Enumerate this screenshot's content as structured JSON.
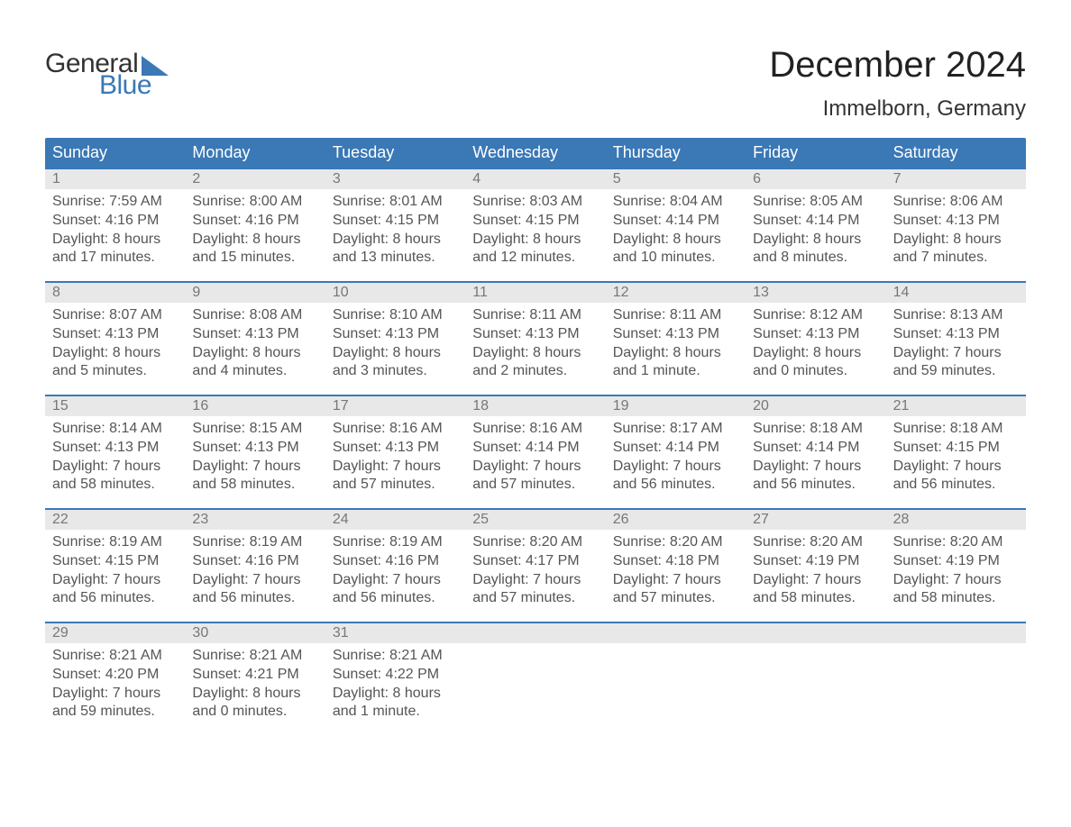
{
  "brand": {
    "line1": "General",
    "line2": "Blue",
    "triangle_color": "#3a78b6"
  },
  "title": "December 2024",
  "location": "Immelborn, Germany",
  "colors": {
    "header_blue": "#3a78b6",
    "day_band": "#e8e8e8",
    "text_dark": "#333333",
    "text_mid": "#555555",
    "daynum": "#777777",
    "background": "#ffffff"
  },
  "typography": {
    "title_fontsize": 40,
    "location_fontsize": 24,
    "dow_fontsize": 18,
    "body_fontsize": 16
  },
  "days_of_week": [
    "Sunday",
    "Monday",
    "Tuesday",
    "Wednesday",
    "Thursday",
    "Friday",
    "Saturday"
  ],
  "weeks": [
    [
      {
        "day": 1,
        "sunrise": "Sunrise: 7:59 AM",
        "sunset": "Sunset: 4:16 PM",
        "dl1": "Daylight: 8 hours",
        "dl2": "and 17 minutes."
      },
      {
        "day": 2,
        "sunrise": "Sunrise: 8:00 AM",
        "sunset": "Sunset: 4:16 PM",
        "dl1": "Daylight: 8 hours",
        "dl2": "and 15 minutes."
      },
      {
        "day": 3,
        "sunrise": "Sunrise: 8:01 AM",
        "sunset": "Sunset: 4:15 PM",
        "dl1": "Daylight: 8 hours",
        "dl2": "and 13 minutes."
      },
      {
        "day": 4,
        "sunrise": "Sunrise: 8:03 AM",
        "sunset": "Sunset: 4:15 PM",
        "dl1": "Daylight: 8 hours",
        "dl2": "and 12 minutes."
      },
      {
        "day": 5,
        "sunrise": "Sunrise: 8:04 AM",
        "sunset": "Sunset: 4:14 PM",
        "dl1": "Daylight: 8 hours",
        "dl2": "and 10 minutes."
      },
      {
        "day": 6,
        "sunrise": "Sunrise: 8:05 AM",
        "sunset": "Sunset: 4:14 PM",
        "dl1": "Daylight: 8 hours",
        "dl2": "and 8 minutes."
      },
      {
        "day": 7,
        "sunrise": "Sunrise: 8:06 AM",
        "sunset": "Sunset: 4:13 PM",
        "dl1": "Daylight: 8 hours",
        "dl2": "and 7 minutes."
      }
    ],
    [
      {
        "day": 8,
        "sunrise": "Sunrise: 8:07 AM",
        "sunset": "Sunset: 4:13 PM",
        "dl1": "Daylight: 8 hours",
        "dl2": "and 5 minutes."
      },
      {
        "day": 9,
        "sunrise": "Sunrise: 8:08 AM",
        "sunset": "Sunset: 4:13 PM",
        "dl1": "Daylight: 8 hours",
        "dl2": "and 4 minutes."
      },
      {
        "day": 10,
        "sunrise": "Sunrise: 8:10 AM",
        "sunset": "Sunset: 4:13 PM",
        "dl1": "Daylight: 8 hours",
        "dl2": "and 3 minutes."
      },
      {
        "day": 11,
        "sunrise": "Sunrise: 8:11 AM",
        "sunset": "Sunset: 4:13 PM",
        "dl1": "Daylight: 8 hours",
        "dl2": "and 2 minutes."
      },
      {
        "day": 12,
        "sunrise": "Sunrise: 8:11 AM",
        "sunset": "Sunset: 4:13 PM",
        "dl1": "Daylight: 8 hours",
        "dl2": "and 1 minute."
      },
      {
        "day": 13,
        "sunrise": "Sunrise: 8:12 AM",
        "sunset": "Sunset: 4:13 PM",
        "dl1": "Daylight: 8 hours",
        "dl2": "and 0 minutes."
      },
      {
        "day": 14,
        "sunrise": "Sunrise: 8:13 AM",
        "sunset": "Sunset: 4:13 PM",
        "dl1": "Daylight: 7 hours",
        "dl2": "and 59 minutes."
      }
    ],
    [
      {
        "day": 15,
        "sunrise": "Sunrise: 8:14 AM",
        "sunset": "Sunset: 4:13 PM",
        "dl1": "Daylight: 7 hours",
        "dl2": "and 58 minutes."
      },
      {
        "day": 16,
        "sunrise": "Sunrise: 8:15 AM",
        "sunset": "Sunset: 4:13 PM",
        "dl1": "Daylight: 7 hours",
        "dl2": "and 58 minutes."
      },
      {
        "day": 17,
        "sunrise": "Sunrise: 8:16 AM",
        "sunset": "Sunset: 4:13 PM",
        "dl1": "Daylight: 7 hours",
        "dl2": "and 57 minutes."
      },
      {
        "day": 18,
        "sunrise": "Sunrise: 8:16 AM",
        "sunset": "Sunset: 4:14 PM",
        "dl1": "Daylight: 7 hours",
        "dl2": "and 57 minutes."
      },
      {
        "day": 19,
        "sunrise": "Sunrise: 8:17 AM",
        "sunset": "Sunset: 4:14 PM",
        "dl1": "Daylight: 7 hours",
        "dl2": "and 56 minutes."
      },
      {
        "day": 20,
        "sunrise": "Sunrise: 8:18 AM",
        "sunset": "Sunset: 4:14 PM",
        "dl1": "Daylight: 7 hours",
        "dl2": "and 56 minutes."
      },
      {
        "day": 21,
        "sunrise": "Sunrise: 8:18 AM",
        "sunset": "Sunset: 4:15 PM",
        "dl1": "Daylight: 7 hours",
        "dl2": "and 56 minutes."
      }
    ],
    [
      {
        "day": 22,
        "sunrise": "Sunrise: 8:19 AM",
        "sunset": "Sunset: 4:15 PM",
        "dl1": "Daylight: 7 hours",
        "dl2": "and 56 minutes."
      },
      {
        "day": 23,
        "sunrise": "Sunrise: 8:19 AM",
        "sunset": "Sunset: 4:16 PM",
        "dl1": "Daylight: 7 hours",
        "dl2": "and 56 minutes."
      },
      {
        "day": 24,
        "sunrise": "Sunrise: 8:19 AM",
        "sunset": "Sunset: 4:16 PM",
        "dl1": "Daylight: 7 hours",
        "dl2": "and 56 minutes."
      },
      {
        "day": 25,
        "sunrise": "Sunrise: 8:20 AM",
        "sunset": "Sunset: 4:17 PM",
        "dl1": "Daylight: 7 hours",
        "dl2": "and 57 minutes."
      },
      {
        "day": 26,
        "sunrise": "Sunrise: 8:20 AM",
        "sunset": "Sunset: 4:18 PM",
        "dl1": "Daylight: 7 hours",
        "dl2": "and 57 minutes."
      },
      {
        "day": 27,
        "sunrise": "Sunrise: 8:20 AM",
        "sunset": "Sunset: 4:19 PM",
        "dl1": "Daylight: 7 hours",
        "dl2": "and 58 minutes."
      },
      {
        "day": 28,
        "sunrise": "Sunrise: 8:20 AM",
        "sunset": "Sunset: 4:19 PM",
        "dl1": "Daylight: 7 hours",
        "dl2": "and 58 minutes."
      }
    ],
    [
      {
        "day": 29,
        "sunrise": "Sunrise: 8:21 AM",
        "sunset": "Sunset: 4:20 PM",
        "dl1": "Daylight: 7 hours",
        "dl2": "and 59 minutes."
      },
      {
        "day": 30,
        "sunrise": "Sunrise: 8:21 AM",
        "sunset": "Sunset: 4:21 PM",
        "dl1": "Daylight: 8 hours",
        "dl2": "and 0 minutes."
      },
      {
        "day": 31,
        "sunrise": "Sunrise: 8:21 AM",
        "sunset": "Sunset: 4:22 PM",
        "dl1": "Daylight: 8 hours",
        "dl2": "and 1 minute."
      },
      null,
      null,
      null,
      null
    ]
  ]
}
